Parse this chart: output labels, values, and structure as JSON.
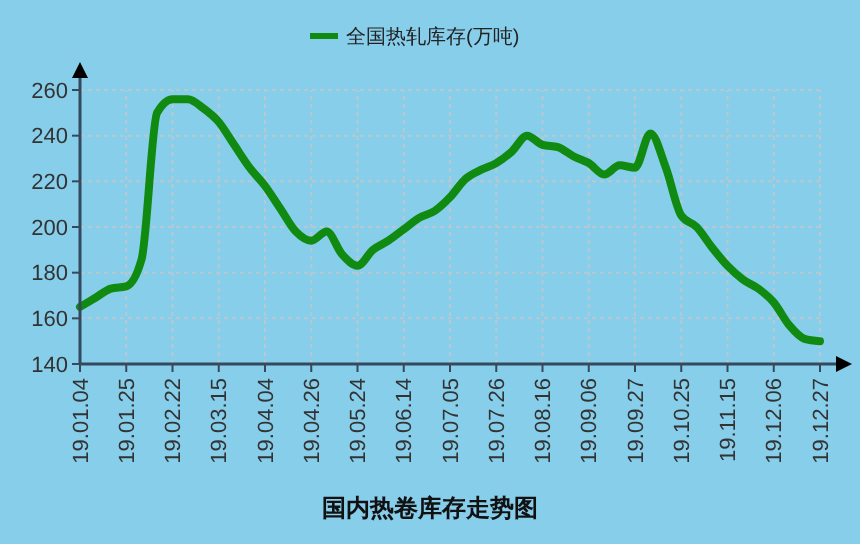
{
  "chart_data": {
    "type": "line",
    "title": "国内热卷库存走势图",
    "categories": [
      "19.01.04",
      null,
      null,
      "19.01.25",
      null,
      null,
      "19.02.22",
      null,
      null,
      "19.03.15",
      null,
      null,
      "19.04.04",
      null,
      null,
      "19.04.26",
      null,
      null,
      "19.05.24",
      null,
      null,
      "19.06.14",
      null,
      null,
      "19.07.05",
      null,
      null,
      "19.07.26",
      null,
      null,
      "19.08.16",
      null,
      null,
      "19.09.06",
      null,
      null,
      "19.09.27",
      null,
      null,
      "19.10.25",
      null,
      null,
      "19.11.15",
      null,
      null,
      "19.12.06",
      null,
      null,
      "19.12.27"
    ],
    "series": [
      {
        "name": "全国热轧库存(万吨)",
        "color": "#118a11",
        "values": [
          165,
          169,
          173,
          174,
          186,
          250,
          256,
          256,
          252,
          246,
          236,
          226,
          218,
          208,
          198,
          194,
          198,
          188,
          183,
          190,
          194,
          199,
          204,
          207,
          213,
          221,
          225,
          228,
          233,
          240,
          236,
          235,
          231,
          228,
          223,
          227,
          226,
          241,
          226,
          205,
          200,
          191,
          183,
          177,
          173,
          167,
          157,
          151,
          150
        ]
      }
    ],
    "ylim": [
      140,
      260
    ],
    "yticks": [
      140,
      160,
      180,
      200,
      220,
      240,
      260
    ],
    "grid": true,
    "legend": "top",
    "marker": "none",
    "line_style": "solid"
  }
}
